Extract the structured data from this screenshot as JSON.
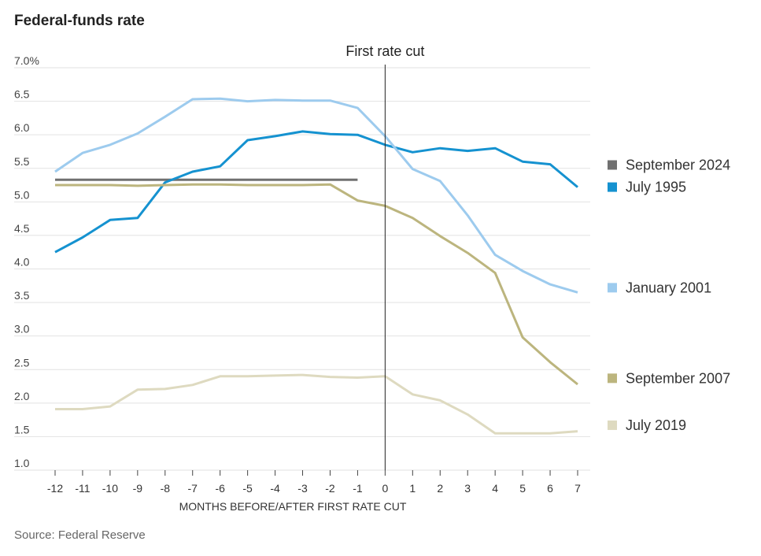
{
  "chart_data": {
    "type": "line",
    "title": "Federal-funds rate",
    "xlabel": "MONTHS BEFORE/AFTER FIRST RATE CUT",
    "ylabel": "",
    "source": "Source: Federal Reserve",
    "annotation": "First rate cut",
    "annotation_x": 0,
    "x": [
      -12,
      -11,
      -10,
      -9,
      -8,
      -7,
      -6,
      -5,
      -4,
      -3,
      -2,
      -1,
      0,
      1,
      2,
      3,
      4,
      5,
      6,
      7
    ],
    "x_tick_labels": [
      "-12",
      "-11",
      "-10",
      "-9",
      "-8",
      "-7",
      "-6",
      "-5",
      "-4",
      "-3",
      "-2",
      "-1",
      "0",
      "1",
      "2",
      "3",
      "4",
      "5",
      "6",
      "7"
    ],
    "xlim": [
      -12,
      7
    ],
    "ylim": [
      1.0,
      7.0
    ],
    "y_ticks": [
      1.0,
      1.5,
      2.0,
      2.5,
      3.0,
      3.5,
      4.0,
      4.5,
      5.0,
      5.5,
      6.0,
      6.5,
      7.0
    ],
    "y_tick_labels": [
      "1.0",
      "1.5",
      "2.0",
      "2.5",
      "3.0",
      "3.5",
      "4.0",
      "4.5",
      "5.0",
      "5.5",
      "6.0",
      "6.5",
      "7.0%"
    ],
    "grid": true,
    "series": [
      {
        "name": "September 2024",
        "color": "#707070",
        "values": [
          5.33,
          5.33,
          5.33,
          5.33,
          5.33,
          5.33,
          5.33,
          5.33,
          5.33,
          5.33,
          5.33,
          5.33,
          null,
          null,
          null,
          null,
          null,
          null,
          null,
          null
        ]
      },
      {
        "name": "July 1995",
        "color": "#1592d0",
        "values": [
          4.25,
          4.47,
          4.73,
          4.76,
          5.29,
          5.45,
          5.53,
          5.92,
          5.98,
          6.05,
          6.01,
          6.0,
          5.85,
          5.74,
          5.8,
          5.76,
          5.8,
          5.6,
          5.56,
          5.22
        ]
      },
      {
        "name": "January 2001",
        "color": "#9dcbee",
        "values": [
          5.45,
          5.73,
          5.85,
          6.02,
          6.27,
          6.53,
          6.54,
          6.5,
          6.52,
          6.51,
          6.51,
          6.4,
          5.98,
          5.49,
          5.31,
          4.8,
          4.21,
          3.97,
          3.77,
          3.65
        ]
      },
      {
        "name": "September 2007",
        "color": "#bcb57e",
        "values": [
          5.25,
          5.25,
          5.25,
          5.24,
          5.25,
          5.26,
          5.26,
          5.25,
          5.25,
          5.25,
          5.26,
          5.02,
          4.94,
          4.76,
          4.49,
          4.24,
          3.94,
          2.98,
          2.61,
          2.28
        ]
      },
      {
        "name": "July 2019",
        "color": "#dedac0",
        "values": [
          1.91,
          1.91,
          1.95,
          2.2,
          2.21,
          2.27,
          2.4,
          2.4,
          2.41,
          2.42,
          2.39,
          2.38,
          2.4,
          2.13,
          2.04,
          1.83,
          1.55,
          1.55,
          1.55,
          1.58
        ]
      }
    ],
    "legend": [
      {
        "name": "September 2024",
        "color": "#707070",
        "at_value": 5.55
      },
      {
        "name": "July 1995",
        "color": "#1592d0",
        "at_value": 5.22
      },
      {
        "name": "January 2001",
        "color": "#9dcbee",
        "at_value": 3.72
      },
      {
        "name": "September 2007",
        "color": "#bcb57e",
        "at_value": 2.37
      },
      {
        "name": "July 2019",
        "color": "#dedac0",
        "at_value": 1.67
      }
    ]
  }
}
